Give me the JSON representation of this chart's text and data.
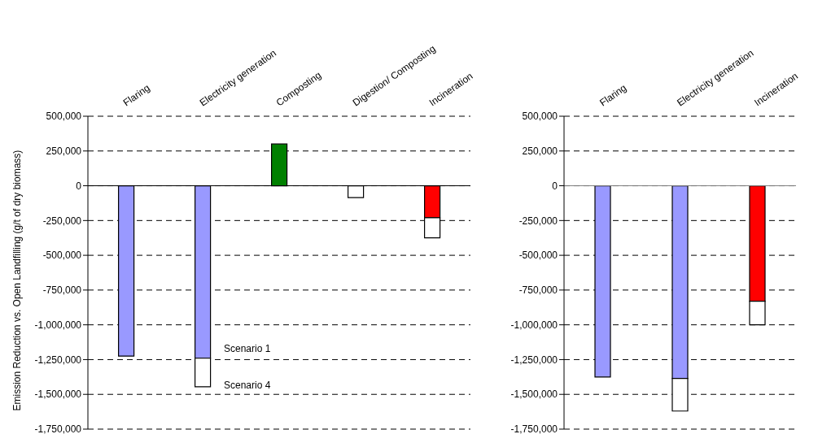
{
  "chart_data": [
    {
      "type": "bar",
      "ylabel": "Emission Reduction vs. Open Landfilling (g/t of dry biomass)",
      "categories": [
        "Flaring",
        "Electricity generation",
        "Composting",
        "Digestion/ Composting",
        "Incineration"
      ],
      "stacked": true,
      "series": [
        {
          "name": "Scenario 1",
          "colors": [
            "#9999ff",
            "#9999ff",
            "#008000",
            "#ffffff",
            "#ff0000"
          ],
          "values": [
            -1225000,
            -1240000,
            300000,
            null,
            -230000
          ]
        },
        {
          "name": "Scenario 4",
          "color": "#ffffff",
          "values": [
            null,
            -205000,
            null,
            -85000,
            -145000
          ]
        }
      ],
      "ylim": [
        -1750000,
        500000
      ],
      "yticks": [
        {
          "value": -1750000,
          "label": "-1,750,000"
        },
        {
          "value": -1500000,
          "label": "-1,500,000"
        },
        {
          "value": -1250000,
          "label": "-1,250,000"
        },
        {
          "value": -1000000,
          "label": "-1,000,000"
        },
        {
          "value": -750000,
          "label": "-750,000"
        },
        {
          "value": -500000,
          "label": "-500,000"
        },
        {
          "value": -250000,
          "label": "-250,000"
        },
        0,
        {
          "value": 250000,
          "label": "250,000"
        },
        {
          "value": 500000,
          "label": "500,000"
        }
      ],
      "grid": "y",
      "legend": false,
      "ref_lines": [
        {
          "axis": "y",
          "value": 0,
          "color": "#000000"
        }
      ]
    },
    {
      "type": "bar",
      "categories": [
        "Flaring",
        "Electricity generation",
        "Incineration"
      ],
      "stacked": true,
      "series": [
        {
          "colors": [
            "#9999ff",
            "#9999ff",
            "#ff0000"
          ],
          "values": [
            -1375000,
            -1385000,
            -830000
          ]
        },
        {
          "color": "#ffffff",
          "values": [
            null,
            -235000,
            -170000
          ]
        }
      ],
      "ylim": [
        -1750000,
        500000
      ],
      "yticks": [
        {
          "value": -1750000,
          "label": "-1,750,000"
        },
        {
          "value": -1500000,
          "label": "-1,500,000"
        },
        {
          "value": -1250000,
          "label": "-1,250,000"
        },
        {
          "value": -1000000,
          "label": "-1,000,000"
        },
        {
          "value": -750000,
          "label": "-750,000"
        },
        {
          "value": -500000,
          "label": "-500,000"
        },
        {
          "value": -250000,
          "label": "-250,000"
        },
        0,
        {
          "value": 250000,
          "label": "250,000"
        },
        {
          "value": 500000,
          "label": "500,000"
        }
      ],
      "grid": "y",
      "legend": false,
      "ref_lines": [
        {
          "axis": "y",
          "value": 0,
          "color": "#808080"
        }
      ]
    }
  ]
}
